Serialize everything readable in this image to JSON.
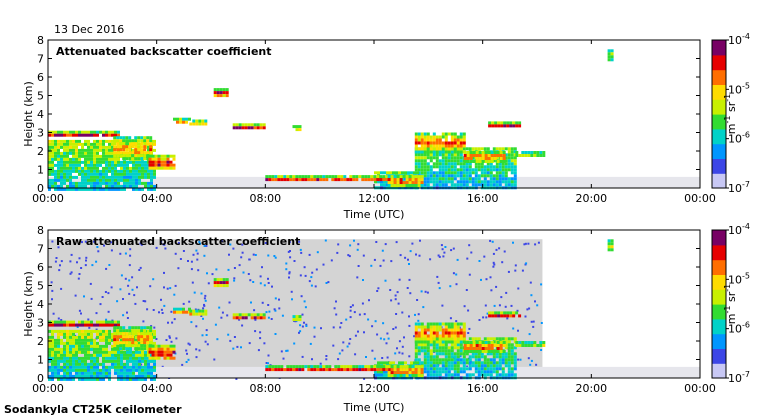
{
  "date_label": "13 Dec 2016",
  "footer_label": "Sodankyla CT25K ceilometer",
  "colors": {
    "colormap": [
      "#c8c8f5",
      "#3c46e6",
      "#0096ff",
      "#00d2c8",
      "#32dc32",
      "#c8f000",
      "#ffdc00",
      "#ff6e00",
      "#e60000",
      "#780064"
    ],
    "noise": "#d4d4d4",
    "ground": "#bebebe"
  },
  "chart_data": [
    {
      "type": "heatmap",
      "title": "Attenuated backscatter coefficient",
      "xlabel": "Time (UTC)",
      "ylabel": "Height (km)",
      "xlim": [
        0,
        24
      ],
      "ylim": [
        0,
        8
      ],
      "xticks": [
        0,
        4,
        8,
        12,
        16,
        20,
        24
      ],
      "xticklabels": [
        "00:00",
        "04:00",
        "08:00",
        "12:00",
        "16:00",
        "20:00",
        "00:00"
      ],
      "yticks": [
        0,
        1,
        2,
        3,
        4,
        5,
        6,
        7,
        8
      ],
      "yticklabels": [
        "0",
        "1",
        "2",
        "3",
        "4",
        "5",
        "6",
        "7",
        "8"
      ],
      "colorbar": {
        "scale": "log",
        "range": [
          1e-07,
          0.0001
        ],
        "ticks": [
          "10",
          "10",
          "10",
          "10"
        ],
        "exponents": [
          "-7",
          "-6",
          "-5",
          "-4"
        ],
        "label_base": [
          "m",
          "sr"
        ],
        "label_exp": [
          "-1",
          "-1"
        ]
      },
      "layers": [
        {
          "start": 0.0,
          "end": 2.6,
          "base": 2.8,
          "top": 3.1,
          "level": 0.9
        },
        {
          "start": 2.4,
          "end": 3.8,
          "base": 1.6,
          "top": 2.8,
          "level": 0.75
        },
        {
          "start": 3.7,
          "end": 4.6,
          "base": 1.0,
          "top": 1.8,
          "level": 0.9
        },
        {
          "start": 4.6,
          "end": 5.2,
          "base": 3.5,
          "top": 3.8,
          "level": 0.75
        },
        {
          "start": 5.2,
          "end": 5.8,
          "base": 3.5,
          "top": 3.7,
          "level": 0.85
        },
        {
          "start": 6.1,
          "end": 6.6,
          "base": 5.0,
          "top": 5.4,
          "level": 0.9
        },
        {
          "start": 6.8,
          "end": 8.0,
          "base": 3.2,
          "top": 3.5,
          "level": 0.9
        },
        {
          "start": 8.0,
          "end": 12.6,
          "base": 0.4,
          "top": 0.7,
          "level": 0.85
        },
        {
          "start": 9.0,
          "end": 9.3,
          "base": 3.2,
          "top": 3.4,
          "level": 0.8
        },
        {
          "start": 12.5,
          "end": 13.8,
          "base": 0.2,
          "top": 0.7,
          "level": 0.85
        },
        {
          "start": 13.5,
          "end": 15.3,
          "base": 2.0,
          "top": 3.0,
          "level": 0.8
        },
        {
          "start": 15.3,
          "end": 16.8,
          "base": 1.5,
          "top": 2.0,
          "level": 0.85
        },
        {
          "start": 16.2,
          "end": 17.4,
          "base": 3.3,
          "top": 3.6,
          "level": 0.9
        },
        {
          "start": 17.2,
          "end": 18.2,
          "base": 1.8,
          "top": 2.0,
          "level": 0.7
        },
        {
          "start": 20.6,
          "end": 20.8,
          "base": 6.9,
          "top": 7.5,
          "level": 0.55
        }
      ],
      "fog_regions": [
        {
          "start": 0.0,
          "end": 3.9,
          "base": 0.0,
          "top": 2.6,
          "level": 0.55
        },
        {
          "start": 13.5,
          "end": 17.2,
          "base": 0.0,
          "top": 2.2,
          "level": 0.5
        },
        {
          "start": 12.0,
          "end": 13.6,
          "base": 0.0,
          "top": 0.9,
          "level": 0.45
        }
      ],
      "noise_regions": []
    },
    {
      "type": "heatmap",
      "title": "Raw attenuated backscatter coefficient",
      "xlabel": "Time (UTC)",
      "ylabel": "Height (km)",
      "xlim": [
        0,
        24
      ],
      "ylim": [
        0,
        8
      ],
      "xticks": [
        0,
        4,
        8,
        12,
        16,
        20,
        24
      ],
      "xticklabels": [
        "00:00",
        "04:00",
        "08:00",
        "12:00",
        "16:00",
        "20:00",
        "00:00"
      ],
      "yticks": [
        0,
        1,
        2,
        3,
        4,
        5,
        6,
        7,
        8
      ],
      "yticklabels": [
        "0",
        "1",
        "2",
        "3",
        "4",
        "5",
        "6",
        "7",
        "8"
      ],
      "colorbar": {
        "scale": "log",
        "range": [
          1e-07,
          0.0001
        ],
        "ticks": [
          "10",
          "10",
          "10",
          "10"
        ],
        "exponents": [
          "-7",
          "-6",
          "-5",
          "-4"
        ],
        "label_base": [
          "m",
          "sr"
        ],
        "label_exp": [
          "-1",
          "-1"
        ]
      },
      "layers": [
        {
          "start": 0.0,
          "end": 2.6,
          "base": 2.8,
          "top": 3.1,
          "level": 0.9
        },
        {
          "start": 2.4,
          "end": 3.8,
          "base": 1.6,
          "top": 2.8,
          "level": 0.75
        },
        {
          "start": 3.7,
          "end": 4.6,
          "base": 1.0,
          "top": 1.8,
          "level": 0.9
        },
        {
          "start": 4.6,
          "end": 5.2,
          "base": 3.5,
          "top": 3.8,
          "level": 0.75
        },
        {
          "start": 5.2,
          "end": 5.8,
          "base": 3.5,
          "top": 3.7,
          "level": 0.85
        },
        {
          "start": 6.1,
          "end": 6.6,
          "base": 5.0,
          "top": 5.4,
          "level": 0.9
        },
        {
          "start": 6.8,
          "end": 8.0,
          "base": 3.2,
          "top": 3.5,
          "level": 0.9
        },
        {
          "start": 8.0,
          "end": 12.6,
          "base": 0.4,
          "top": 0.7,
          "level": 0.85
        },
        {
          "start": 9.0,
          "end": 9.3,
          "base": 3.2,
          "top": 3.4,
          "level": 0.8
        },
        {
          "start": 12.5,
          "end": 13.8,
          "base": 0.2,
          "top": 0.7,
          "level": 0.85
        },
        {
          "start": 13.5,
          "end": 15.3,
          "base": 2.0,
          "top": 3.0,
          "level": 0.8
        },
        {
          "start": 15.3,
          "end": 16.8,
          "base": 1.5,
          "top": 2.0,
          "level": 0.85
        },
        {
          "start": 16.2,
          "end": 17.4,
          "base": 3.3,
          "top": 3.6,
          "level": 0.9
        },
        {
          "start": 17.2,
          "end": 18.2,
          "base": 1.8,
          "top": 2.0,
          "level": 0.7
        },
        {
          "start": 20.6,
          "end": 20.8,
          "base": 6.9,
          "top": 7.5,
          "level": 0.55
        }
      ],
      "fog_regions": [
        {
          "start": 0.0,
          "end": 3.9,
          "base": 0.0,
          "top": 2.6,
          "level": 0.55
        },
        {
          "start": 13.5,
          "end": 17.2,
          "base": 0.0,
          "top": 2.2,
          "level": 0.5
        },
        {
          "start": 12.0,
          "end": 13.6,
          "base": 0.0,
          "top": 0.9,
          "level": 0.45
        }
      ],
      "noise_regions": [
        {
          "start": 0.0,
          "end": 18.2,
          "base": 0.0,
          "top": 7.5
        }
      ]
    }
  ]
}
